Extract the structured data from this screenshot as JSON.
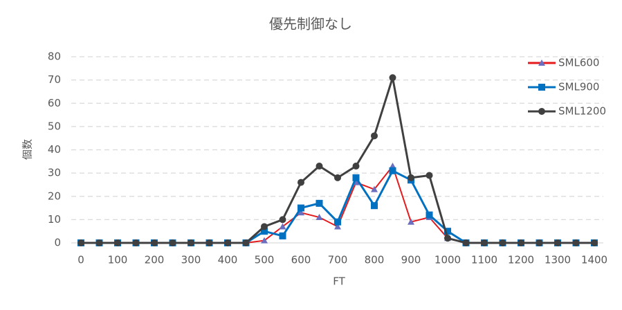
{
  "chart_data": {
    "type": "line",
    "title": "優先制御なし",
    "x_label": "FT",
    "y_label": "個数",
    "x": [
      0,
      50,
      100,
      150,
      200,
      250,
      300,
      350,
      400,
      450,
      500,
      550,
      600,
      650,
      700,
      750,
      800,
      850,
      900,
      950,
      1000,
      1050,
      1100,
      1150,
      1200,
      1250,
      1300,
      1350,
      1400
    ],
    "series": [
      {
        "name": "SML600",
        "color": "#e41a1c",
        "marker": "triangle",
        "marker_color": "#6a6fbf",
        "values": [
          0,
          0,
          0,
          0,
          0,
          0,
          0,
          0,
          0,
          0,
          1,
          7,
          13,
          11,
          7,
          26,
          23,
          33,
          9,
          11,
          2,
          0,
          0,
          0,
          0,
          0,
          0,
          0,
          0
        ]
      },
      {
        "name": "SML900",
        "color": "#0070c0",
        "marker": "square",
        "marker_color": "#0070c0",
        "values": [
          0,
          0,
          0,
          0,
          0,
          0,
          0,
          0,
          0,
          0,
          5,
          3,
          15,
          17,
          9,
          28,
          16,
          31,
          27,
          12,
          5,
          0,
          0,
          0,
          0,
          0,
          0,
          0,
          0
        ]
      },
      {
        "name": "SML1200",
        "color": "#404040",
        "marker": "circle",
        "marker_color": "#404040",
        "values": [
          0,
          0,
          0,
          0,
          0,
          0,
          0,
          0,
          0,
          0,
          7,
          10,
          26,
          33,
          28,
          33,
          46,
          71,
          28,
          29,
          2,
          0,
          0,
          0,
          0,
          0,
          0,
          0,
          0
        ]
      }
    ],
    "xlim": [
      0,
      1400
    ],
    "xticks": [
      0,
      100,
      200,
      300,
      400,
      500,
      600,
      700,
      800,
      900,
      1000,
      1100,
      1200,
      1300,
      1400
    ],
    "ylim": [
      0,
      80
    ],
    "yticks": [
      0,
      10,
      20,
      30,
      40,
      50,
      60,
      70,
      80
    ],
    "grid": true,
    "legend": "top-right"
  }
}
